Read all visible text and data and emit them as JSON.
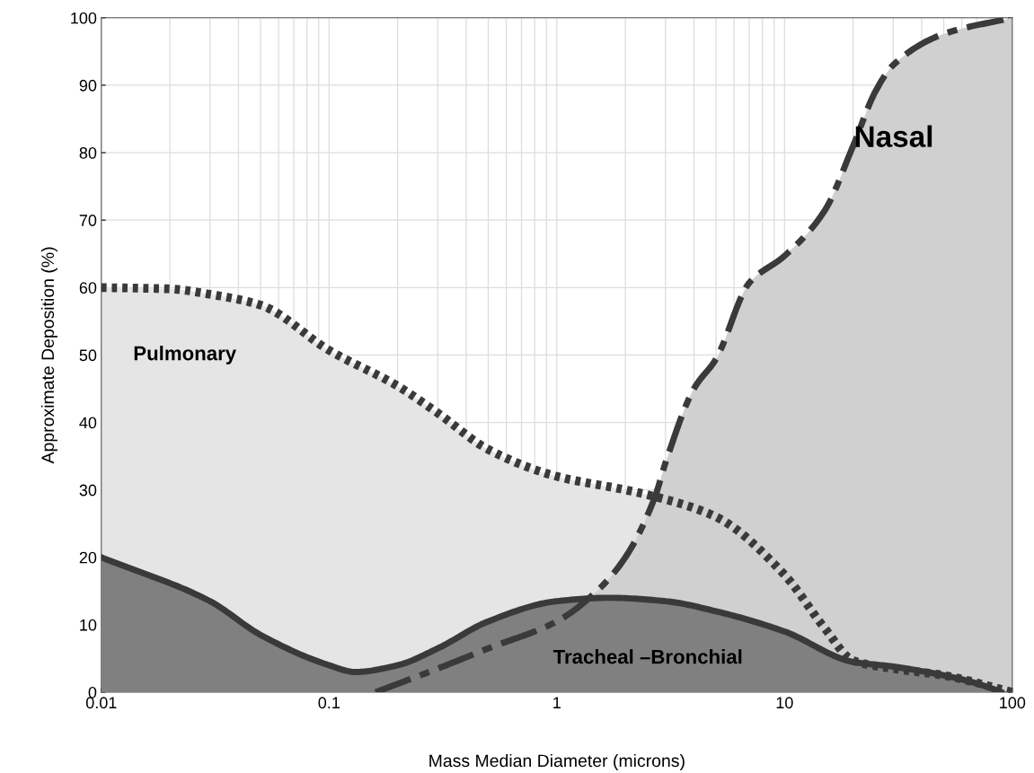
{
  "chart_data": {
    "type": "area",
    "xlabel": "Mass Median Diameter (microns)",
    "ylabel": "Approximate Deposition (%)",
    "log": "x",
    "xlim": [
      0.01,
      100
    ],
    "xticks": [
      0.01,
      0.1,
      1,
      10,
      100
    ],
    "ylim": [
      0,
      100
    ],
    "yticks": [
      0,
      10,
      20,
      30,
      40,
      50,
      60,
      70,
      80,
      90,
      100
    ],
    "grid": true,
    "series": [
      {
        "name": "Pulmonary",
        "color": "#e5e5e5",
        "line_style": "dotted",
        "x": [
          0.01,
          0.02,
          0.03,
          0.05,
          0.1,
          0.2,
          0.3,
          0.5,
          1,
          2,
          2.7,
          5,
          10,
          15,
          20,
          30,
          50,
          100
        ],
        "values": [
          60,
          59.8,
          59,
          57.4,
          50.7,
          45.4,
          41.4,
          36,
          32,
          30,
          29,
          26,
          17.4,
          9.5,
          4.7,
          3.5,
          2.5,
          0
        ]
      },
      {
        "name": "Nasal",
        "color": "#d0d0d0",
        "line_style": "dashed",
        "x": [
          0.16,
          0.3,
          0.5,
          1,
          1.5,
          2,
          2.7,
          3,
          4,
          5,
          7,
          10,
          15,
          20,
          25,
          30,
          50,
          100
        ],
        "values": [
          0,
          3.5,
          6.5,
          10.5,
          15,
          20,
          29,
          34,
          45,
          49.4,
          60.7,
          64.7,
          71.4,
          81,
          89,
          93,
          97.6,
          100
        ]
      },
      {
        "name": "Tracheal –Bronchial",
        "color": "#808080",
        "line_style": "solid",
        "x": [
          0.01,
          0.03,
          0.05,
          0.1,
          0.13,
          0.2,
          0.3,
          0.5,
          1,
          1.7,
          3,
          5,
          10,
          20,
          30,
          50,
          70,
          90
        ],
        "values": [
          20,
          13.5,
          8.5,
          4,
          3,
          4,
          6.5,
          10.5,
          13.5,
          14,
          13.5,
          12,
          9,
          4.5,
          3.8,
          2.5,
          1.3,
          0
        ]
      }
    ]
  }
}
